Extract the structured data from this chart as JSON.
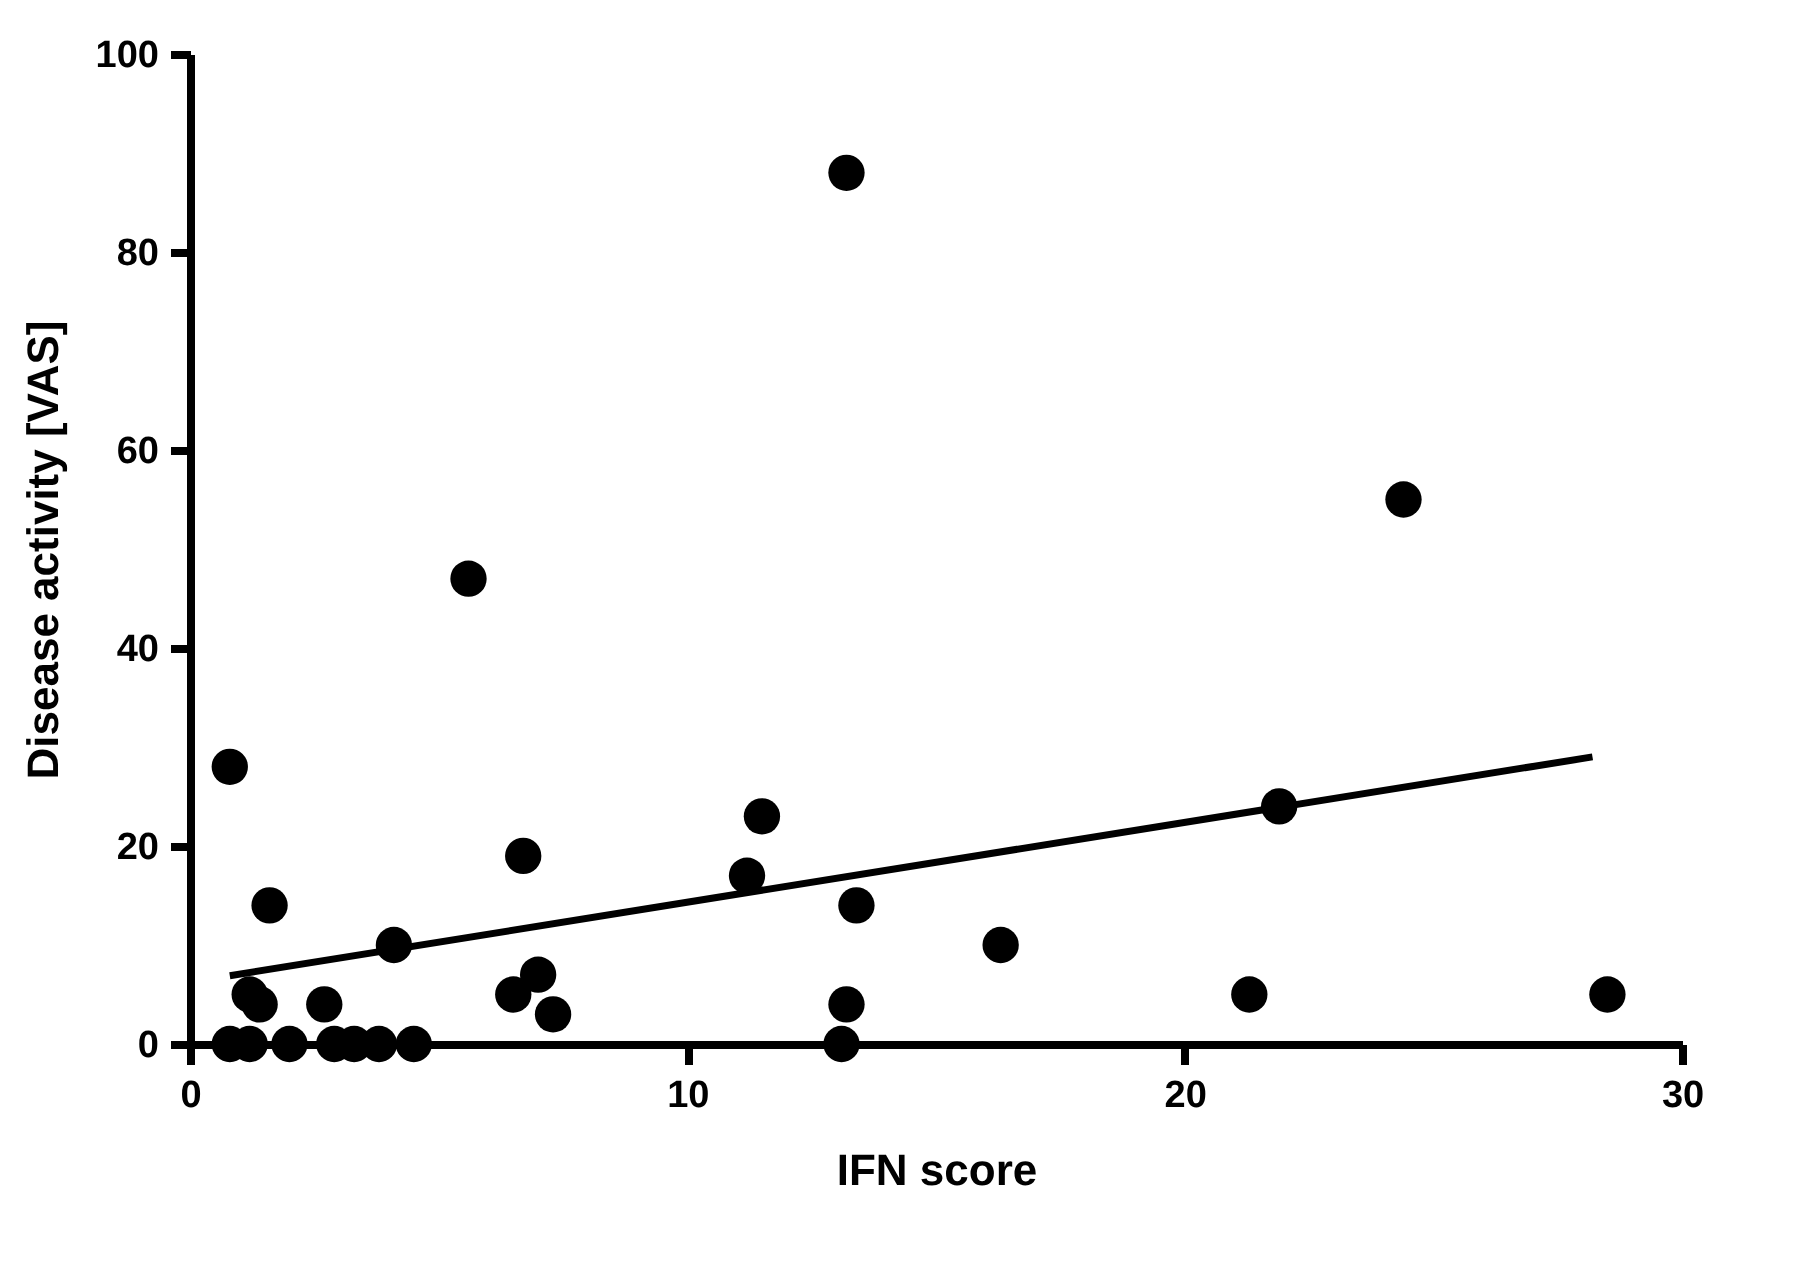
{
  "chart_data": {
    "type": "scatter",
    "xlabel": "IFN score",
    "ylabel": "Disease activity [VAS]",
    "xlim": [
      0,
      30
    ],
    "xticks": [
      0,
      10,
      20,
      30
    ],
    "ylim": [
      0,
      100
    ],
    "yticks": [
      0,
      20,
      40,
      60,
      80,
      100
    ],
    "grid": false,
    "marker": "circle",
    "series": [
      {
        "color": "#000000",
        "x": [
          0.8,
          0.8,
          1.2,
          2.0,
          2.9,
          3.3,
          3.8,
          4.5,
          1.2,
          1.4,
          1.6,
          2.7,
          4.1,
          5.6,
          6.7,
          6.5,
          7.0,
          7.3,
          11.2,
          11.5,
          13.2,
          13.4,
          13.2,
          13.1,
          16.3,
          21.3,
          21.9,
          24.4,
          28.5
        ],
        "values": [
          28,
          0,
          0,
          0,
          0,
          0,
          0,
          0,
          5,
          4,
          14,
          4,
          10,
          47,
          19,
          5,
          7,
          3,
          17,
          23,
          88,
          14,
          4,
          0,
          10,
          5,
          24,
          55,
          5
        ]
      },
      {
        "type": "line",
        "color": "#000000",
        "line_style": "solid",
        "marker": "none",
        "x": [
          0.8,
          28.2
        ],
        "values": [
          6.9,
          29.0
        ]
      }
    ]
  }
}
